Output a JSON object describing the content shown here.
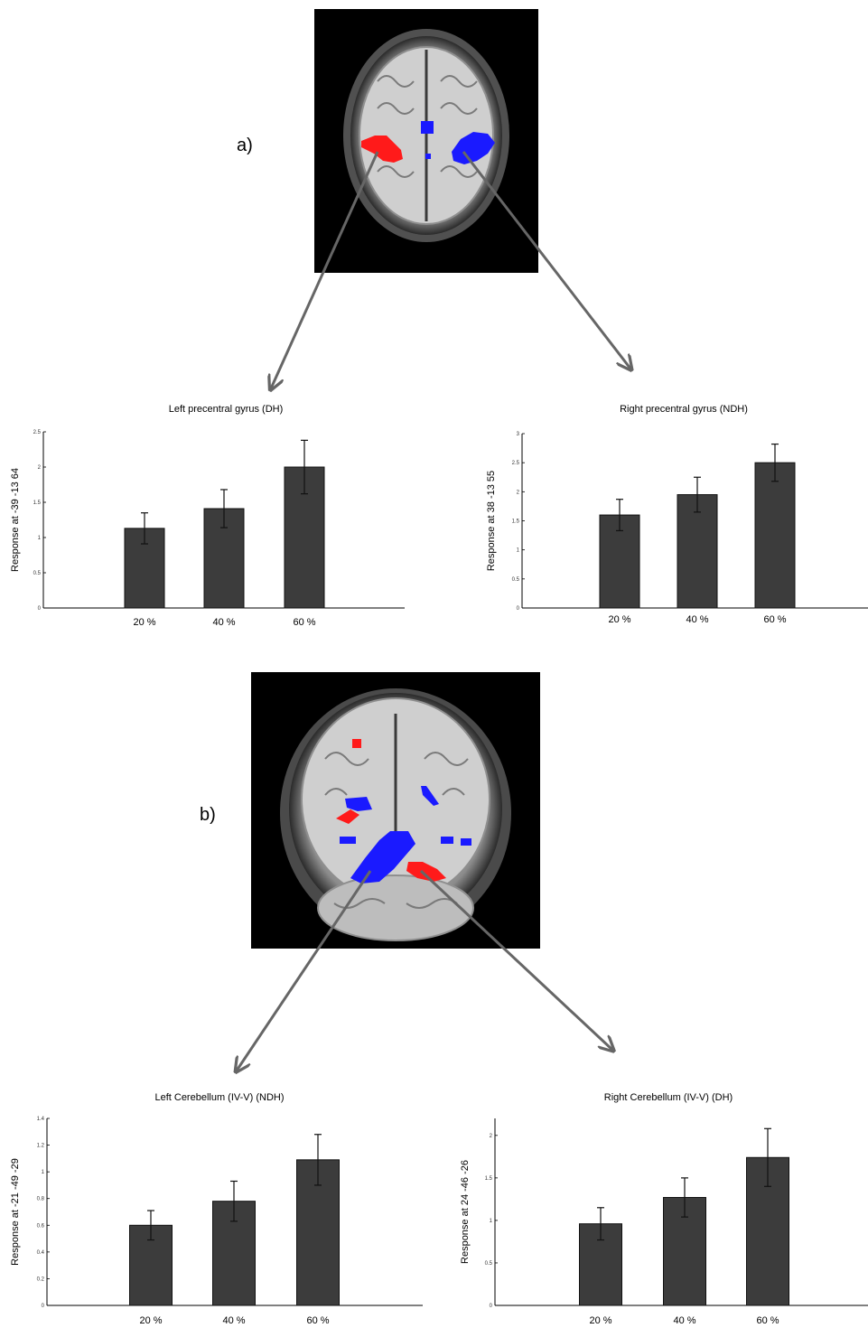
{
  "colors": {
    "bar": "#3c3c3c",
    "activation_red": "#ff1a1a",
    "activation_blue": "#1a1aff",
    "arrow": "#666666"
  },
  "panels": {
    "a_label": "a)",
    "b_label": "b)",
    "a_image": "axial-brain-scan",
    "b_image": "coronal-brain-scan"
  },
  "chart_data": [
    {
      "type": "bar",
      "title": "Left precentral gyrus (DH)",
      "xlabel": "",
      "ylabel": "Response at -39 -13 64",
      "categories": [
        "20 %",
        "40 %",
        "60 %"
      ],
      "values": [
        1.13,
        1.41,
        2.0
      ],
      "errors": [
        0.22,
        0.27,
        0.38
      ],
      "ylim": [
        0,
        2.5
      ],
      "yticks": [
        "0",
        "0.5",
        "1",
        "1.5",
        "2",
        "2.5"
      ],
      "grid": false
    },
    {
      "type": "bar",
      "title": "Right precentral gyrus (NDH)",
      "xlabel": "",
      "ylabel": "Response at 38 -13 55",
      "categories": [
        "20 %",
        "40 %",
        "60 %"
      ],
      "values": [
        1.6,
        1.95,
        2.5
      ],
      "errors": [
        0.27,
        0.3,
        0.32
      ],
      "ylim": [
        0,
        3
      ],
      "yticks": [
        "0",
        "0.5",
        "1",
        "1.5",
        "2",
        "2.5",
        "3"
      ],
      "grid": false
    },
    {
      "type": "bar",
      "title": "Left Cerebellum (IV-V) (NDH)",
      "xlabel": "",
      "ylabel": "Response at -21 -49 -29",
      "categories": [
        "20 %",
        "40 %",
        "60 %"
      ],
      "values": [
        0.6,
        0.78,
        1.09
      ],
      "errors": [
        0.11,
        0.15,
        0.19
      ],
      "ylim": [
        0,
        1.4
      ],
      "yticks": [
        "0",
        "0.2",
        "0.4",
        "0.6",
        "0.8",
        "1",
        "1.2",
        "1.4"
      ],
      "grid": false
    },
    {
      "type": "bar",
      "title": "Right Cerebellum (IV-V) (DH)",
      "xlabel": "",
      "ylabel": "Response at 24 -46 -26",
      "categories": [
        "20 %",
        "40 %",
        "60 %"
      ],
      "values": [
        0.96,
        1.27,
        1.74
      ],
      "errors": [
        0.19,
        0.23,
        0.34
      ],
      "ylim": [
        0,
        2.2
      ],
      "yticks": [
        "0",
        "0.5",
        "1",
        "1.5",
        "2"
      ],
      "grid": false
    }
  ]
}
